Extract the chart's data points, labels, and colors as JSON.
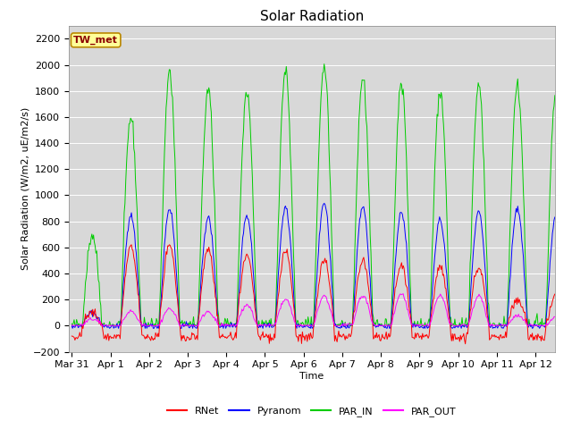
{
  "title": "Solar Radiation",
  "xlabel": "Time",
  "ylabel": "Solar Radiation (W/m2, uE/m2/s)",
  "ylim": [
    -200,
    2300
  ],
  "yticks": [
    -200,
    0,
    200,
    400,
    600,
    800,
    1000,
    1200,
    1400,
    1600,
    1800,
    2000,
    2200
  ],
  "xlim": [
    -0.08,
    12.5
  ],
  "tick_labels": [
    "Mar 31",
    "Apr 1",
    "Apr 2",
    "Apr 3",
    "Apr 4",
    "Apr 5",
    "Apr 6",
    "Apr 7",
    "Apr 8",
    "Apr 9",
    "Apr 10",
    "Apr 11",
    "Apr 12"
  ],
  "tick_positions": [
    0,
    1,
    2,
    3,
    4,
    5,
    6,
    7,
    8,
    9,
    10,
    11,
    12
  ],
  "station_label": "TW_met",
  "colors": {
    "RNet": "#ff0000",
    "Pyranom": "#0000ff",
    "PAR_IN": "#00cc00",
    "PAR_OUT": "#ff00ff"
  },
  "legend_labels": [
    "RNet",
    "Pyranom",
    "PAR_IN",
    "PAR_OUT"
  ],
  "background_color": "#d8d8d8",
  "grid_color": "#ffffff",
  "title_fontsize": 11,
  "axis_fontsize": 8,
  "tick_fontsize": 8,
  "legend_fontsize": 8
}
